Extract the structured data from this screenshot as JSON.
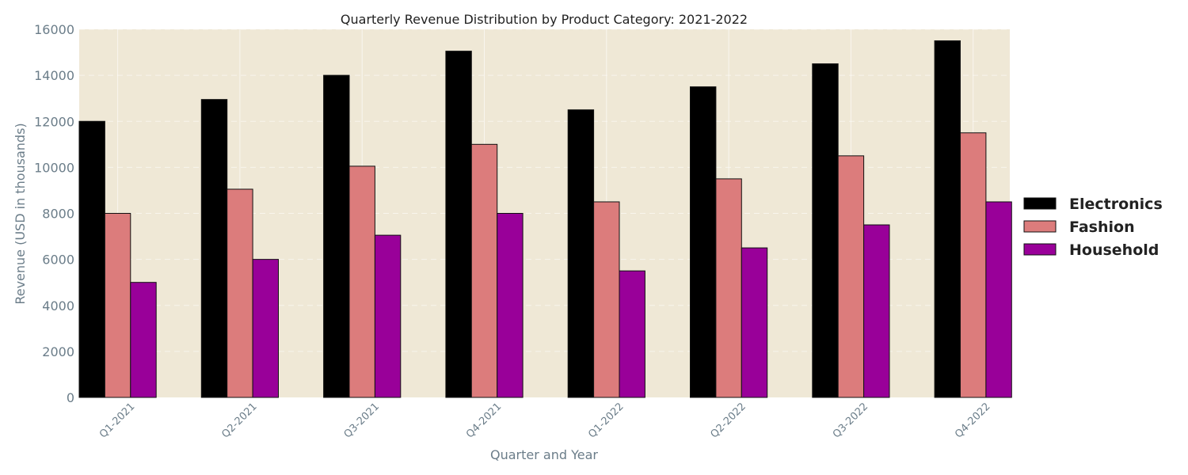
{
  "chart_data": {
    "type": "bar",
    "title": "Quarterly Revenue Distribution by Product Category: 2021-2022",
    "xlabel": "Quarter and Year",
    "ylabel": "Revenue (USD in thousands)",
    "categories": [
      "Q1-2021",
      "Q2-2021",
      "Q3-2021",
      "Q4-2021",
      "Q1-2022",
      "Q2-2022",
      "Q3-2022",
      "Q4-2022"
    ],
    "series": [
      {
        "name": "Electronics",
        "color": "#000000",
        "values": [
          12000,
          12950,
          14000,
          15050,
          12500,
          13500,
          14500,
          15500
        ]
      },
      {
        "name": "Fashion",
        "color": "#dc7c7c",
        "values": [
          8000,
          9050,
          10050,
          11000,
          8500,
          9500,
          10500,
          11500
        ]
      },
      {
        "name": "Household",
        "color": "#990099",
        "values": [
          5000,
          6000,
          7050,
          8000,
          5500,
          6500,
          7500,
          8500
        ]
      }
    ],
    "ylim": [
      0,
      16000
    ],
    "yticks": [
      0,
      2000,
      4000,
      6000,
      8000,
      10000,
      12000,
      14000,
      16000
    ],
    "grid": true,
    "legend_position": "right",
    "background_color": "#efe8d6"
  }
}
